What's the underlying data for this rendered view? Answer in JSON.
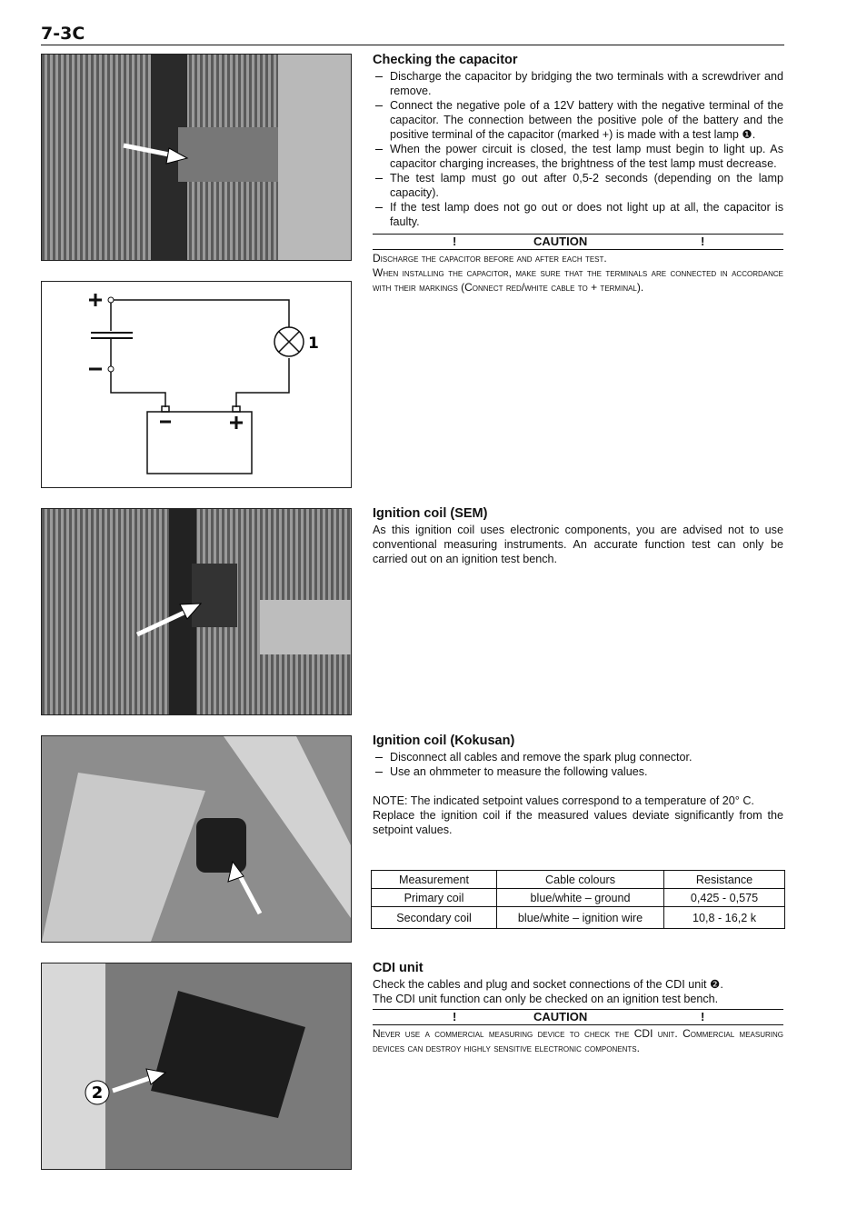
{
  "header": {
    "page_number": "7-3C"
  },
  "sections": [
    {
      "title": "Checking the capacitor",
      "items": [
        "Discharge the capacitor by bridging the two terminals with a screwdriver and remove.",
        "Connect the negative pole of a 12V battery with the negative terminal of the capacitor. The connection between the positive pole of the battery and the positive terminal of the capacitor (marked +) is made with a test lamp ❶.",
        "When the power circuit is closed, the test lamp must begin to light up. As capacitor charging increases, the brightness of the test lamp must decrease.",
        "The test lamp must go out after 0,5-2 seconds (depending on the lamp capacity).",
        "If the test lamp does not go out or does not light up at all, the capacitor is faulty."
      ],
      "caution": {
        "marker": "!",
        "label": "CAUTION",
        "text": [
          "Discharge the capacitor before and after each test.",
          "When installing the capacitor, make sure that the terminals are connected in accordance with their markings (Connect red/white cable to + terminal)."
        ]
      }
    },
    {
      "title": "Ignition coil (SEM)",
      "paragraphs": [
        "As this ignition coil uses electronic components, you are advised not to use conventional measuring instruments. An accurate function test can only be carried out on an ignition test bench."
      ]
    },
    {
      "title": "Ignition coil (Kokusan)",
      "items": [
        "Disconnect all cables and remove the spark plug connector.",
        "Use an ohmmeter to measure the following values."
      ],
      "paragraphs": [
        "NOTE: The indicated setpoint values correspond to a temperature of 20° C.",
        "Replace the ignition coil if the measured values deviate significantly from the setpoint values."
      ],
      "table": {
        "header": [
          "Measurement",
          "Cable colours",
          "Resistance"
        ],
        "rows": [
          [
            "Primary coil",
            "blue/white – ground",
            "0,425 - 0,575"
          ],
          [
            "Secondary coil",
            "blue/white – ignition wire",
            "10,8 - 16,2 k"
          ]
        ]
      }
    },
    {
      "title": "CDI unit",
      "paragraphs": [
        "Check the cables and plug and socket connections of the CDI unit ❷.",
        "The CDI unit function can only be checked on an ignition test bench."
      ],
      "caution": {
        "marker": "!",
        "label": "CAUTION",
        "text": [
          "Never use a commercial measuring device to check the CDI unit. Commercial measuring devices can destroy highly sensitive electronic components."
        ]
      }
    }
  ],
  "figures": [
    {
      "label": "1"
    },
    {
      "label": "2"
    }
  ]
}
